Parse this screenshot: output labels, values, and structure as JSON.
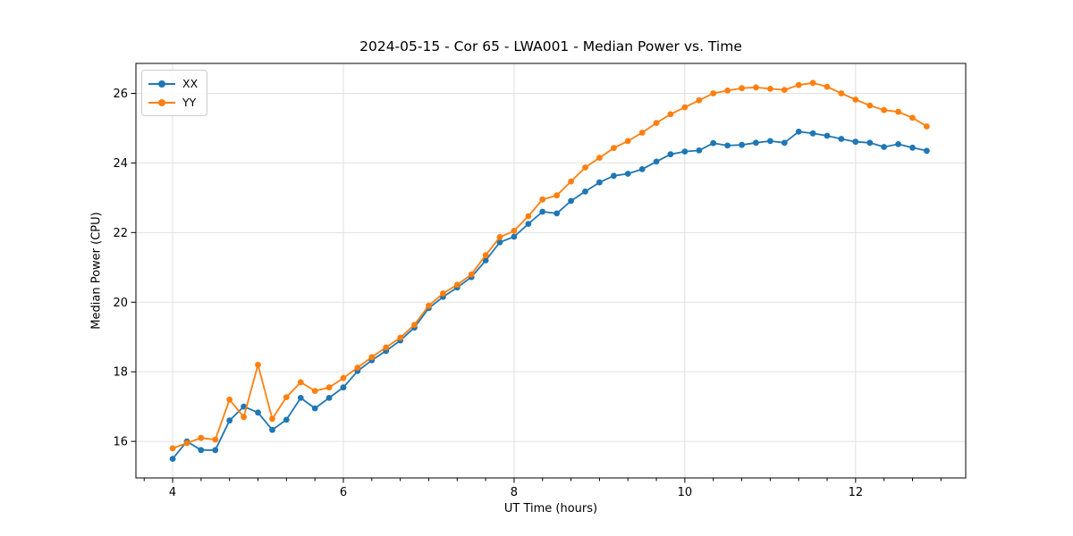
{
  "figure": {
    "title": "2024-05-15 - Cor 65 - LWA001 - Median Power vs. Time",
    "xlabel": "UT Time (hours)",
    "ylabel": "Median Power (CPU)",
    "background_color": "#ffffff",
    "frame_color": "#000000",
    "grid_color": "#e0e0e0",
    "text_color": "#000000"
  },
  "legend": {
    "position": "upper left",
    "entries": [
      {
        "label": "XX",
        "color": "#1f77b4"
      },
      {
        "label": "YY",
        "color": "#ff7f0e"
      }
    ]
  },
  "axes": {
    "xlim": [
      3.57,
      13.29
    ],
    "ylim": [
      14.95,
      26.86
    ],
    "x_major_ticks": [
      4,
      6,
      8,
      10,
      12
    ],
    "x_tick_labels": [
      "4",
      "6",
      "8",
      "10",
      "12"
    ],
    "x_minor_step": 0.3333333,
    "y_major_ticks": [
      16,
      18,
      20,
      22,
      24,
      26
    ],
    "y_tick_labels": [
      "16",
      "18",
      "20",
      "22",
      "24",
      "26"
    ],
    "grid": "major-both"
  },
  "chart_data": {
    "type": "line",
    "title": "2024-05-15 - Cor 65 - LWA001 - Median Power vs. Time",
    "xlabel": "UT Time (hours)",
    "ylabel": "Median Power (CPU)",
    "xlim": [
      3.57,
      13.29
    ],
    "ylim": [
      14.95,
      26.86
    ],
    "grid": true,
    "legend_position": "upper left",
    "marker": "circle",
    "x": [
      4.0,
      4.167,
      4.333,
      4.5,
      4.667,
      4.833,
      5.0,
      5.167,
      5.333,
      5.5,
      5.667,
      5.833,
      6.0,
      6.167,
      6.333,
      6.5,
      6.667,
      6.833,
      7.0,
      7.167,
      7.333,
      7.5,
      7.667,
      7.833,
      8.0,
      8.167,
      8.333,
      8.5,
      8.667,
      8.833,
      9.0,
      9.167,
      9.333,
      9.5,
      9.667,
      9.833,
      10.0,
      10.167,
      10.333,
      10.5,
      10.667,
      10.833,
      11.0,
      11.167,
      11.333,
      11.5,
      11.667,
      11.833,
      12.0,
      12.167,
      12.333,
      12.5,
      12.667,
      12.833
    ],
    "series": [
      {
        "name": "XX",
        "color": "#1f77b4",
        "values": [
          15.5,
          16.0,
          15.75,
          15.75,
          16.6,
          17.0,
          16.83,
          16.33,
          16.62,
          17.25,
          16.95,
          17.25,
          17.55,
          18.02,
          18.33,
          18.6,
          18.9,
          19.27,
          19.83,
          20.15,
          20.42,
          20.72,
          21.2,
          21.72,
          21.88,
          22.25,
          22.6,
          22.55,
          22.91,
          23.18,
          23.44,
          23.63,
          23.69,
          23.82,
          24.04,
          24.25,
          24.33,
          24.36,
          24.57,
          24.5,
          24.52,
          24.58,
          24.63,
          24.58,
          24.9,
          24.85,
          24.78,
          24.69,
          24.61,
          24.58,
          24.46,
          24.54,
          24.44,
          24.35
        ]
      },
      {
        "name": "YY",
        "color": "#ff7f0e",
        "values": [
          15.8,
          15.95,
          16.1,
          16.05,
          17.2,
          16.7,
          18.2,
          16.65,
          17.27,
          17.7,
          17.45,
          17.55,
          17.82,
          18.12,
          18.42,
          18.7,
          18.98,
          19.35,
          19.9,
          20.25,
          20.5,
          20.8,
          21.35,
          21.87,
          22.05,
          22.47,
          22.95,
          23.07,
          23.47,
          23.87,
          24.15,
          24.43,
          24.63,
          24.87,
          25.15,
          25.4,
          25.6,
          25.8,
          26.0,
          26.08,
          26.15,
          26.17,
          26.13,
          26.1,
          26.24,
          26.3,
          26.19,
          26.0,
          25.82,
          25.65,
          25.52,
          25.47,
          25.3,
          25.05
        ]
      }
    ]
  }
}
